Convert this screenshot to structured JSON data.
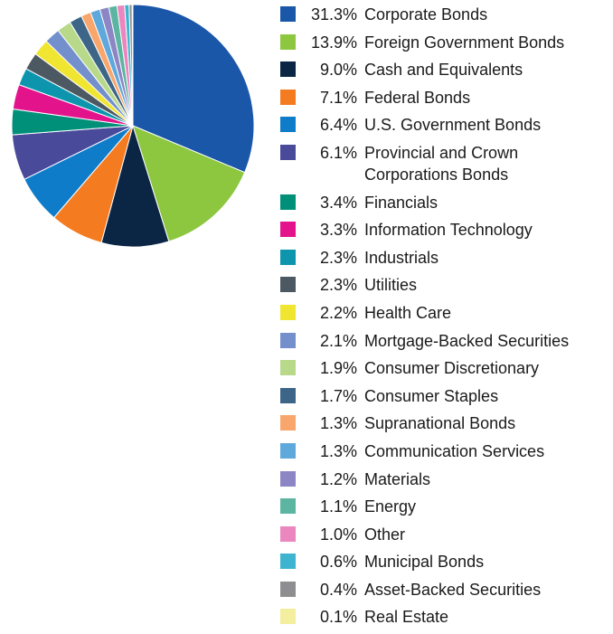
{
  "chart_data": {
    "type": "pie",
    "title": "",
    "legend_position": "right",
    "slices": [
      {
        "label": "Corporate Bonds",
        "value": 31.3,
        "display": "31.3%",
        "color": "#1A57A8"
      },
      {
        "label": "Foreign Government Bonds",
        "value": 13.9,
        "display": "13.9%",
        "color": "#8DC63F"
      },
      {
        "label": "Cash and Equivalents",
        "value": 9.0,
        "display": "9.0%",
        "color": "#0B2545"
      },
      {
        "label": "Federal Bonds",
        "value": 7.1,
        "display": "7.1%",
        "color": "#F47B20"
      },
      {
        "label": "U.S. Government Bonds",
        "value": 6.4,
        "display": "6.4%",
        "color": "#0F7CC9"
      },
      {
        "label": "Provincial and Crown Corporations Bonds",
        "value": 6.1,
        "display": "6.1%",
        "color": "#4A4A9A"
      },
      {
        "label": "Financials",
        "value": 3.4,
        "display": "3.4%",
        "color": "#00907A"
      },
      {
        "label": "Information Technology",
        "value": 3.3,
        "display": "3.3%",
        "color": "#E3138C"
      },
      {
        "label": "Industrials",
        "value": 2.3,
        "display": "2.3%",
        "color": "#0E95AE"
      },
      {
        "label": "Utilities",
        "value": 2.3,
        "display": "2.3%",
        "color": "#4C5962"
      },
      {
        "label": "Health Care",
        "value": 2.2,
        "display": "2.2%",
        "color": "#F0E531"
      },
      {
        "label": "Mortgage-Backed Securities",
        "value": 2.1,
        "display": "2.1%",
        "color": "#7390CC"
      },
      {
        "label": "Consumer Discretionary",
        "value": 1.9,
        "display": "1.9%",
        "color": "#B8D98A"
      },
      {
        "label": "Consumer Staples",
        "value": 1.7,
        "display": "1.7%",
        "color": "#3C6587"
      },
      {
        "label": "Supranational Bonds",
        "value": 1.3,
        "display": "1.3%",
        "color": "#F9A66C"
      },
      {
        "label": "Communication Services",
        "value": 1.3,
        "display": "1.3%",
        "color": "#5FA8DC"
      },
      {
        "label": "Materials",
        "value": 1.2,
        "display": "1.2%",
        "color": "#8C86C4"
      },
      {
        "label": "Energy",
        "value": 1.1,
        "display": "1.1%",
        "color": "#5BB5A1"
      },
      {
        "label": "Other",
        "value": 1.0,
        "display": "1.0%",
        "color": "#EB86BE"
      },
      {
        "label": "Municipal Bonds",
        "value": 0.6,
        "display": "0.6%",
        "color": "#3EB4D0"
      },
      {
        "label": "Asset-Backed Securities",
        "value": 0.4,
        "display": "0.4%",
        "color": "#8E8E90"
      },
      {
        "label": "Real Estate",
        "value": 0.1,
        "display": "0.1%",
        "color": "#F4EF9E"
      }
    ]
  }
}
